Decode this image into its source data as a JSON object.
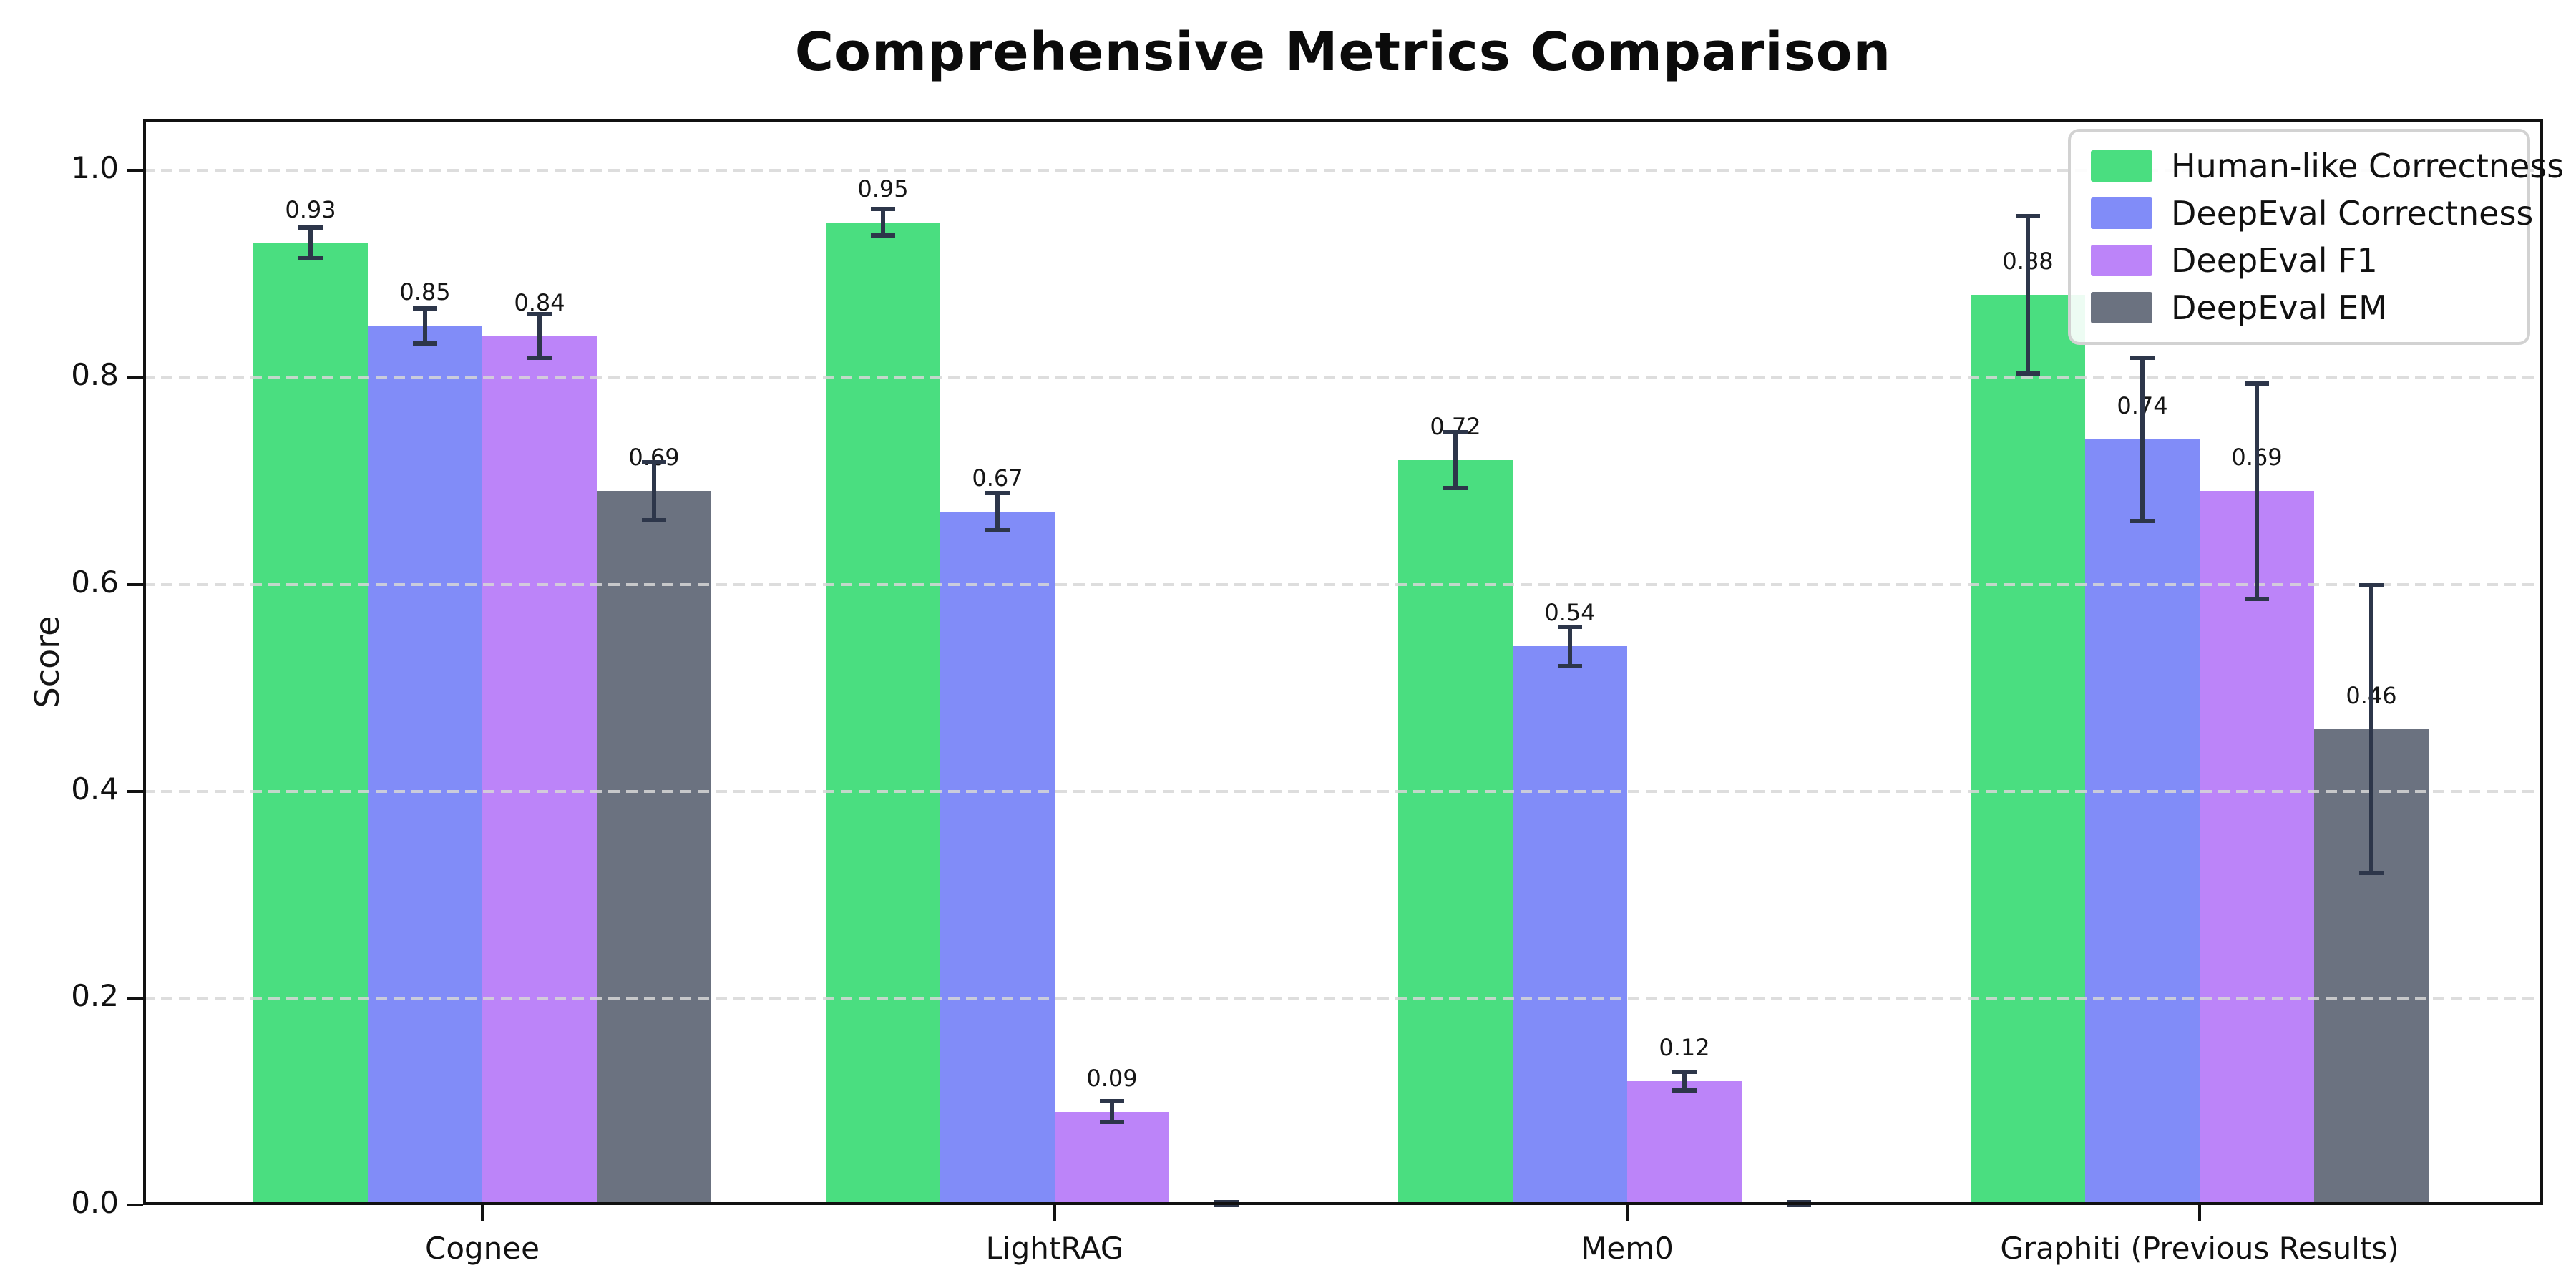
{
  "page": {
    "background": "#ffffff"
  },
  "chart_data": {
    "type": "bar",
    "title": "Comprehensive Metrics Comparison",
    "xlabel": "",
    "ylabel": "Score",
    "categories": [
      "Cognee",
      "LightRAG",
      "Mem0",
      "Graphiti (Previous Results)"
    ],
    "series": [
      {
        "name": "Human-like Correctness",
        "color": "#4ade80",
        "values": [
          0.93,
          0.95,
          0.72,
          0.88
        ],
        "errors": [
          0.015,
          0.013,
          0.027,
          0.076
        ],
        "labels": [
          "0.93",
          "0.95",
          "0.72",
          "0.88"
        ]
      },
      {
        "name": "DeepEval Correctness",
        "color": "#818cf8",
        "values": [
          0.85,
          0.67,
          0.54,
          0.74
        ],
        "errors": [
          0.017,
          0.018,
          0.019,
          0.079
        ],
        "labels": [
          "0.85",
          "0.67",
          "0.54",
          "0.74"
        ]
      },
      {
        "name": "DeepEval F1",
        "color": "#bc84f9",
        "values": [
          0.84,
          0.09,
          0.12,
          0.69
        ],
        "errors": [
          0.021,
          0.01,
          0.009,
          0.104
        ],
        "labels": [
          "0.84",
          "0.09",
          "0.12",
          "0.69"
        ]
      },
      {
        "name": "DeepEval EM",
        "color": "#6b7280",
        "values": [
          0.69,
          0.0,
          0.0,
          0.46
        ],
        "errors": [
          0.028,
          0.003,
          0.003,
          0.139
        ],
        "labels": [
          "0.69",
          "",
          "",
          "0.46"
        ]
      }
    ],
    "yticks": [
      "0.0",
      "0.2",
      "0.4",
      "0.6",
      "0.8",
      "1.0"
    ],
    "ylim": [
      0,
      1.05
    ],
    "grid": "horizontal dashed, drawn above bars",
    "legend_position": "upper right",
    "error_bar_color": "#2d364a",
    "grid_color": "#d7d7d7",
    "spine_color": "#111111",
    "text_color": "#111111"
  }
}
